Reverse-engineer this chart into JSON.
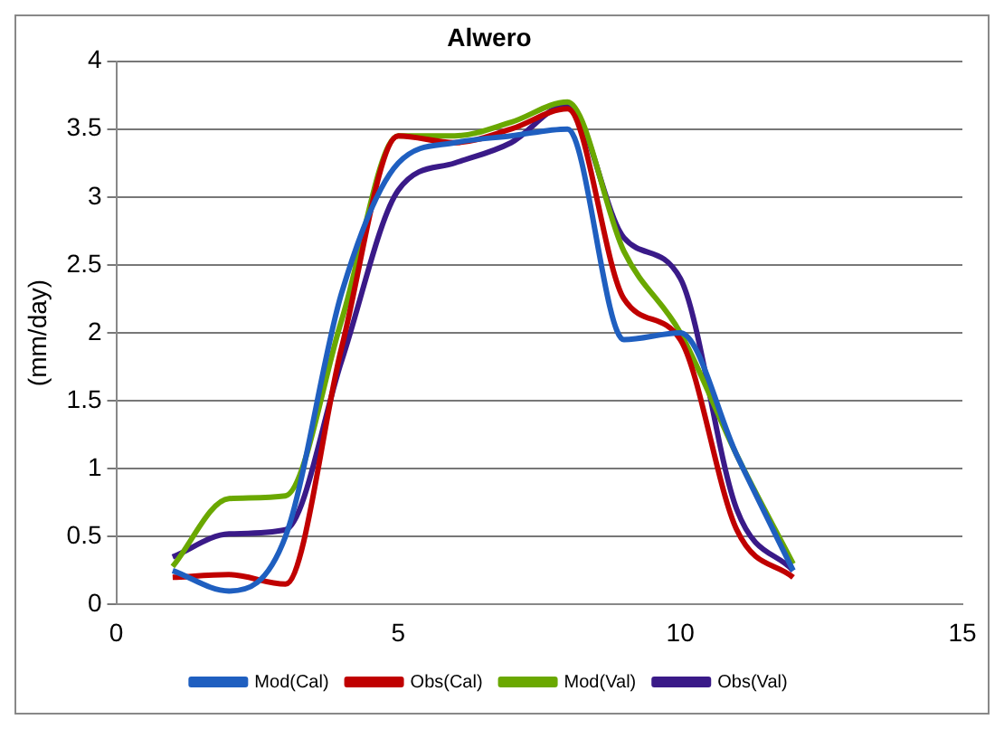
{
  "chart_data": {
    "type": "line",
    "title": "Alwero",
    "ylabel": "(mm/day)",
    "x": [
      1,
      2,
      3,
      4,
      5,
      6,
      7,
      8,
      9,
      10,
      11,
      12
    ],
    "xlim": [
      0,
      15
    ],
    "xticks": [
      0,
      5,
      10,
      15
    ],
    "ylim": [
      0,
      4
    ],
    "yticks": [
      0,
      0.5,
      1,
      1.5,
      2,
      2.5,
      3,
      3.5,
      4
    ],
    "grid": "y",
    "legend": "bottom",
    "marker": "none",
    "line_style": "solid",
    "series": [
      {
        "name": "Mod(Cal)",
        "color": "#1f5fc0",
        "values": [
          0.25,
          0.1,
          0.5,
          2.3,
          3.25,
          3.4,
          3.45,
          3.5,
          1.95,
          2.0,
          1.1,
          0.25
        ]
      },
      {
        "name": "Obs(Cal)",
        "color": "#c00000",
        "values": [
          0.2,
          0.22,
          0.15,
          1.9,
          3.45,
          3.4,
          3.5,
          3.65,
          2.25,
          1.95,
          0.55,
          0.2
        ]
      },
      {
        "name": "Mod(Val)",
        "color": "#6aa800",
        "values": [
          0.28,
          0.78,
          0.8,
          2.1,
          3.45,
          3.45,
          3.55,
          3.7,
          2.6,
          2.0,
          1.1,
          0.3
        ]
      },
      {
        "name": "Obs(Val)",
        "color": "#3a1a88",
        "values": [
          0.35,
          0.52,
          0.55,
          1.8,
          3.05,
          3.25,
          3.4,
          3.68,
          2.7,
          2.4,
          0.7,
          0.25
        ]
      }
    ]
  }
}
